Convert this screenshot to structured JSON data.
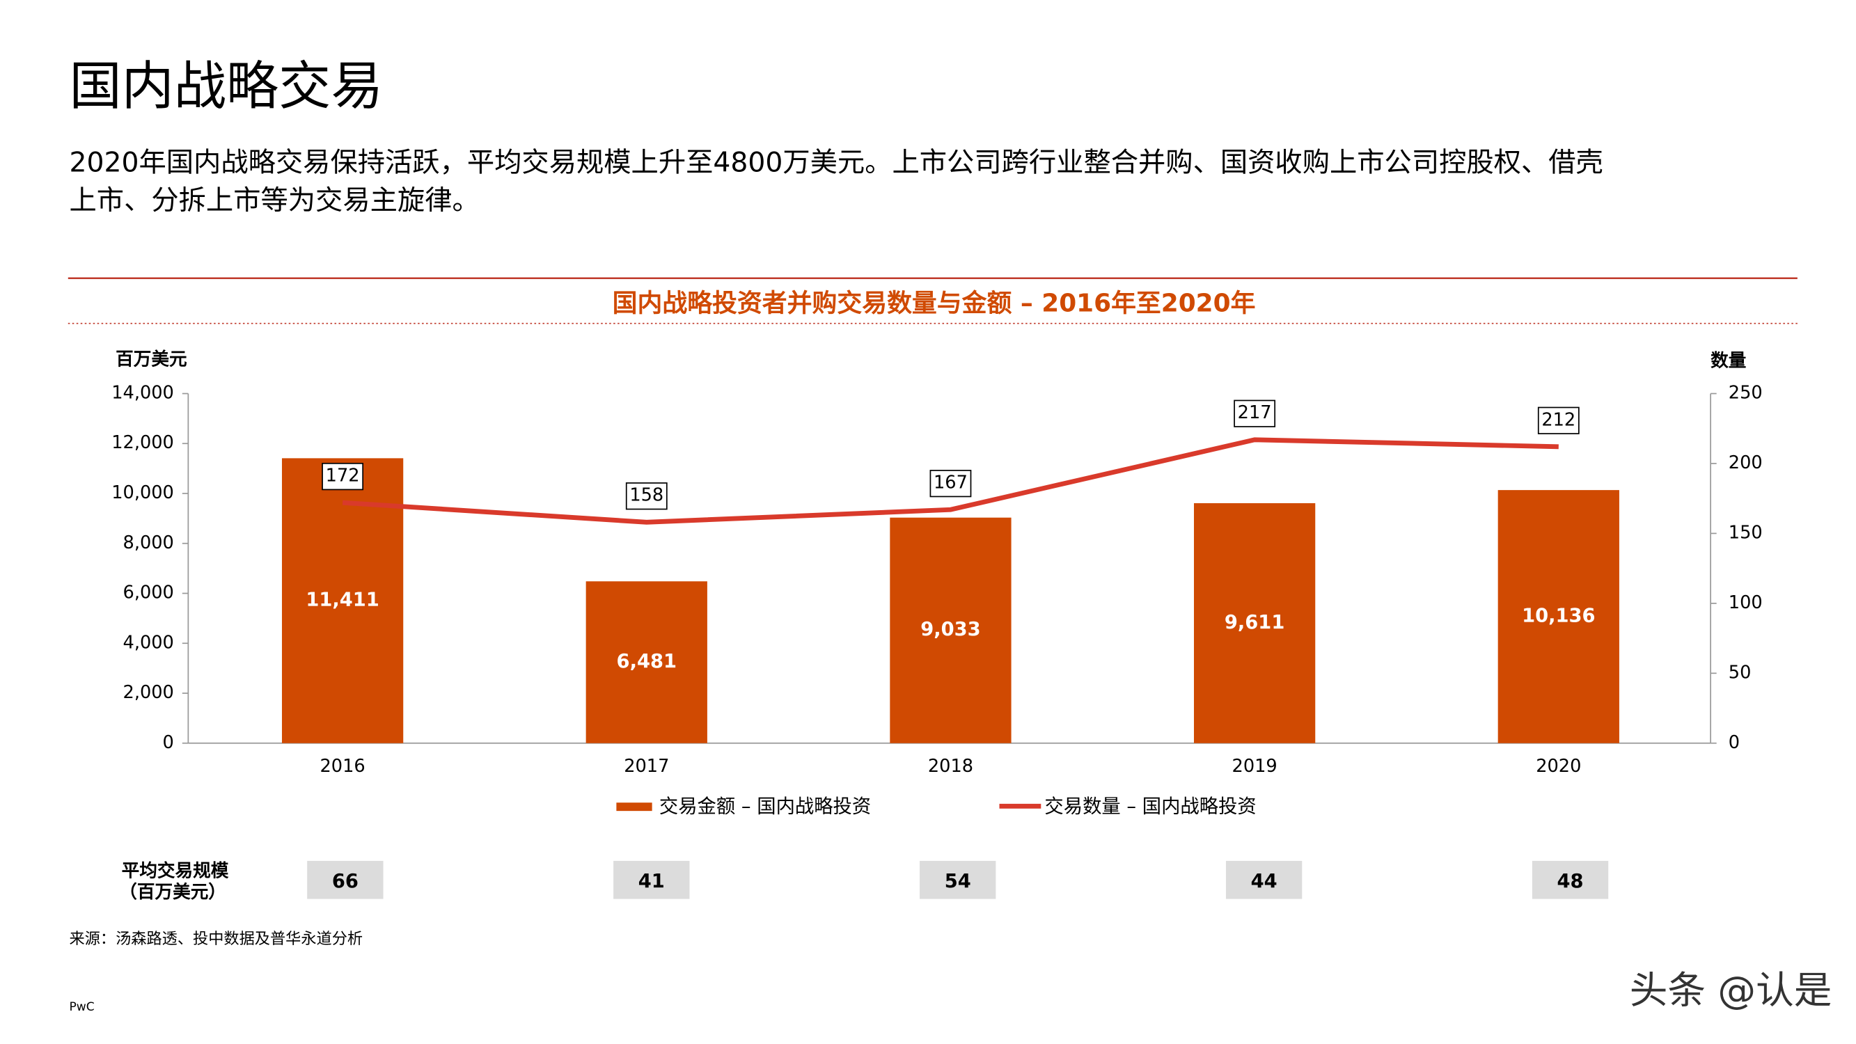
{
  "page_title": "国内战略交易",
  "description": [
    "2020年国内战略交易保持活跃，平均交易规模上升至4800万美元。上市公司跨行业整合并购、国资收购上市公司控股权、借壳",
    "上市、分拆上市等为交易主旋律。"
  ],
  "chart_data": {
    "type": "bar",
    "title": "国内战略投资者并购交易数量与金额  –  2016年至2020年",
    "ylabel": "百万美元",
    "y2label": "数量",
    "categories": [
      "2016",
      "2017",
      "2018",
      "2019",
      "2020"
    ],
    "series": [
      {
        "name": "交易金额 – 国内战略投资",
        "color": "#d04a02",
        "values": [
          11411,
          6481,
          9033,
          9611,
          10136
        ],
        "value_labels": [
          "11,411",
          "6,481",
          "9,033",
          "9,611",
          "10,136"
        ]
      },
      {
        "name": "交易数量 – 国内战略投资",
        "type": "line",
        "axis": "y2",
        "color": "#d93a2b",
        "values": [
          172,
          158,
          167,
          217,
          212
        ]
      }
    ],
    "ylim": [
      0,
      14000
    ],
    "yticks": [
      0,
      {
        "value": 2000,
        "label": "2,000"
      },
      {
        "value": 4000,
        "label": "4,000"
      },
      {
        "value": 6000,
        "label": "6,000"
      },
      {
        "value": 8000,
        "label": "8,000"
      },
      {
        "value": 10000,
        "label": "10,000"
      },
      {
        "value": 12000,
        "label": "12,000"
      },
      {
        "value": 14000,
        "label": "14,000"
      }
    ],
    "y2lim": [
      0,
      250
    ],
    "y2ticks": [
      0,
      50,
      100,
      150,
      200,
      250
    ]
  },
  "avg_size": {
    "label": [
      "平均交易规模",
      "（百万美元）"
    ],
    "values": [
      66,
      41,
      54,
      44,
      48
    ]
  },
  "source": "来源：汤森路透、投中数据及普华永道分析",
  "footer": "PwC",
  "watermark": "头条 @认是"
}
